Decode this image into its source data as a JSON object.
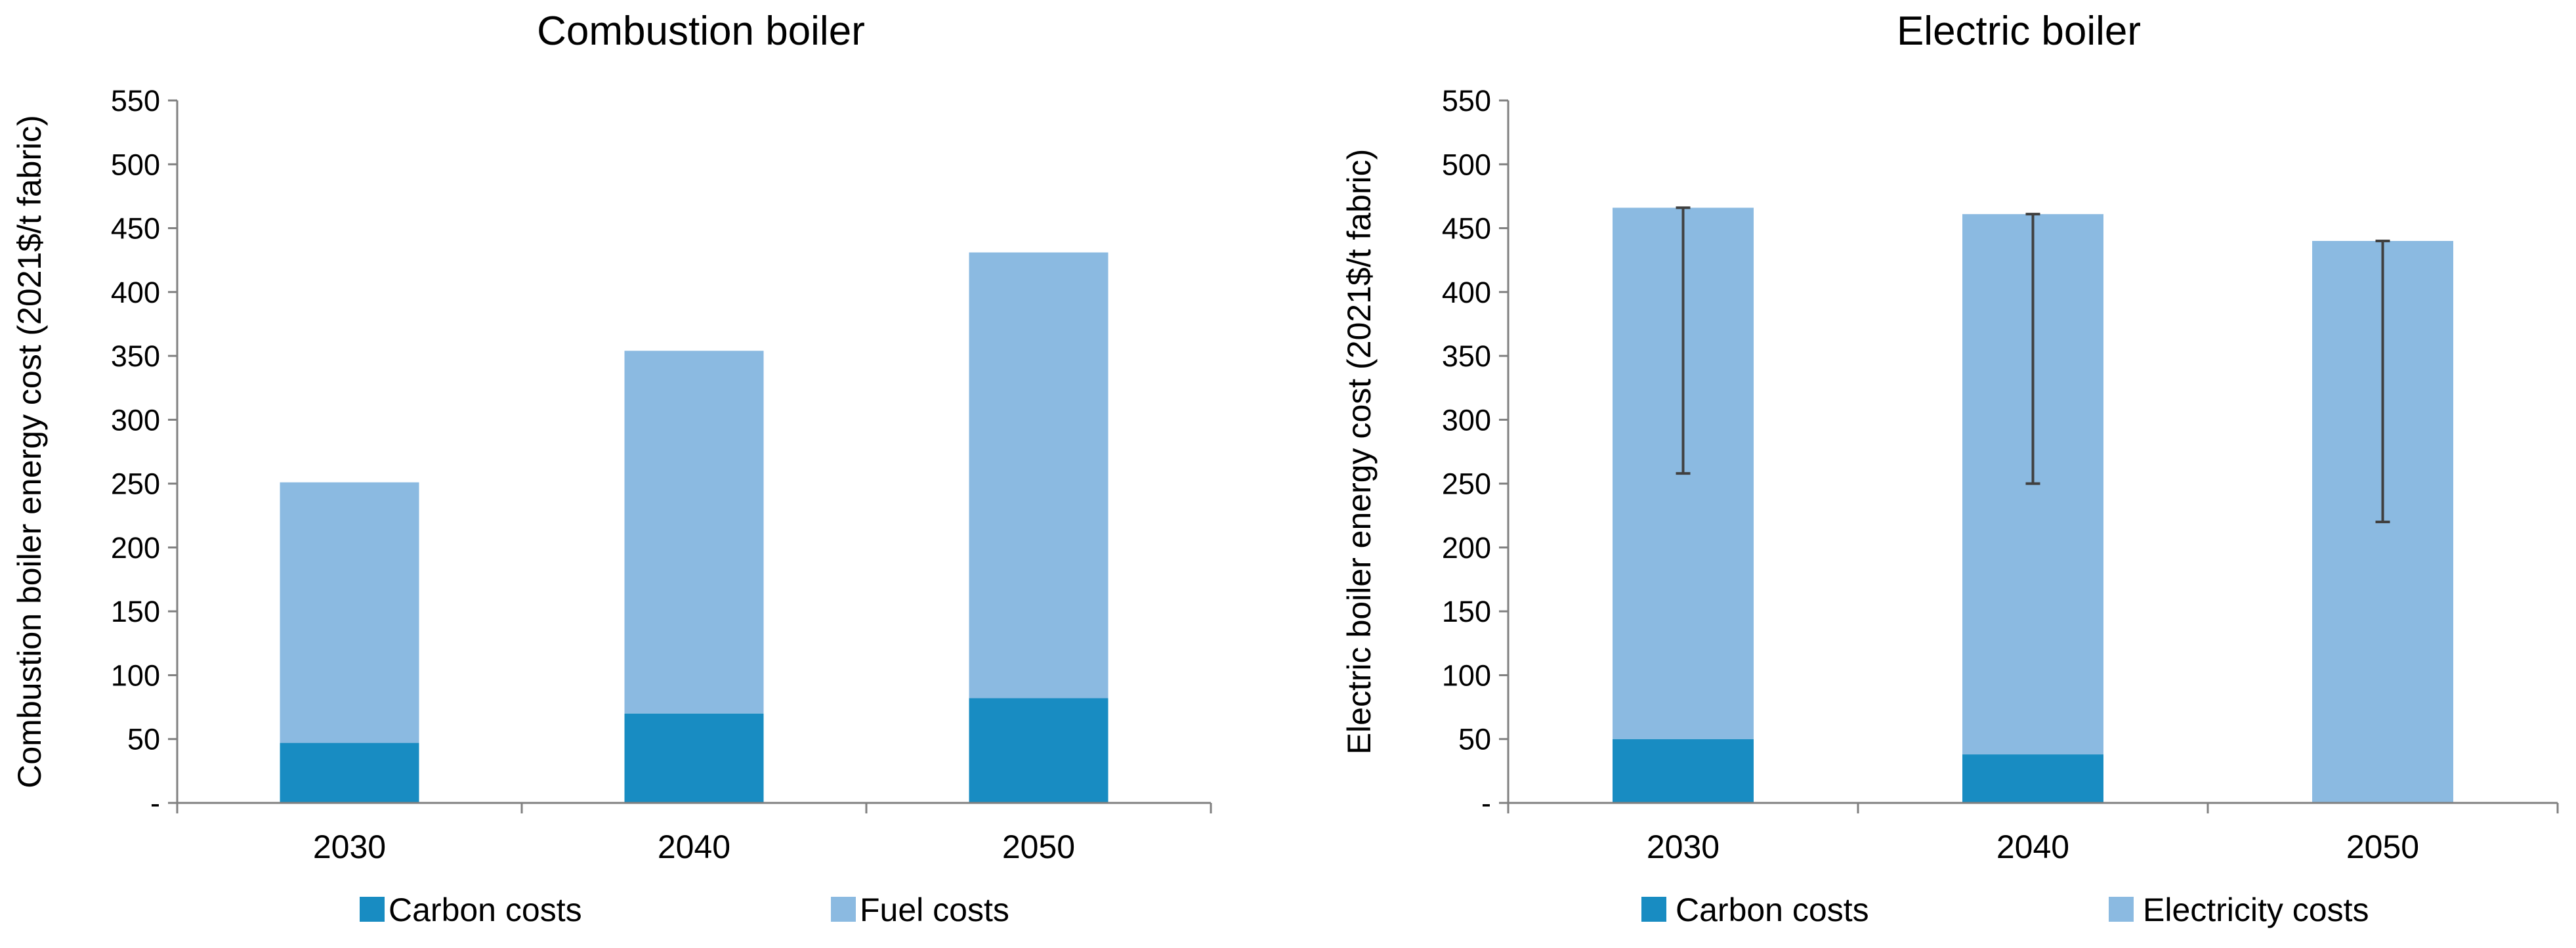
{
  "colors": {
    "carbon": "#188CC2",
    "fuel": "#8BBAE1",
    "electricity": "#8BBAE1",
    "axis": "#808080",
    "errorbar": "#404040",
    "text": "#000000"
  },
  "chart_data": [
    {
      "type": "bar",
      "stacked": true,
      "title": "Combustion boiler",
      "xlabel": "",
      "ylabel": "Combustion boiler energy cost (2021$/t fabric)",
      "ylim": [
        0,
        550
      ],
      "ytick_step": 50,
      "yticks": [
        "-",
        "50",
        "100",
        "150",
        "200",
        "250",
        "300",
        "350",
        "400",
        "450",
        "500",
        "550"
      ],
      "categories": [
        "2030",
        "2040",
        "2050"
      ],
      "series": [
        {
          "name": "Carbon costs",
          "color_key": "carbon",
          "values": [
            47,
            70,
            82
          ]
        },
        {
          "name": "Fuel costs",
          "color_key": "fuel",
          "values": [
            204,
            284,
            349
          ]
        }
      ],
      "error_bars": [],
      "legend": [
        "Carbon costs",
        "Fuel costs"
      ],
      "legend_position": "bottom",
      "grid": false
    },
    {
      "type": "bar",
      "stacked": true,
      "title": "Electric boiler",
      "xlabel": "",
      "ylabel": "Electric boiler energy cost  (2021$/t fabric)",
      "ylim": [
        0,
        550
      ],
      "ytick_step": 50,
      "yticks": [
        "-",
        "50",
        "100",
        "150",
        "200",
        "250",
        "300",
        "350",
        "400",
        "450",
        "500",
        "550"
      ],
      "categories": [
        "2030",
        "2040",
        "2050"
      ],
      "series": [
        {
          "name": "Carbon costs",
          "color_key": "carbon",
          "values": [
            50,
            38,
            0
          ]
        },
        {
          "name": "Electricity costs",
          "color_key": "electricity",
          "values": [
            416,
            423,
            440
          ]
        }
      ],
      "error_bars": [
        {
          "category": "2030",
          "low": 258,
          "high": 466
        },
        {
          "category": "2040",
          "low": 250,
          "high": 461
        },
        {
          "category": "2050",
          "low": 220,
          "high": 440
        }
      ],
      "legend": [
        "Carbon costs",
        "Electricity costs"
      ],
      "legend_position": "bottom",
      "grid": false
    }
  ]
}
